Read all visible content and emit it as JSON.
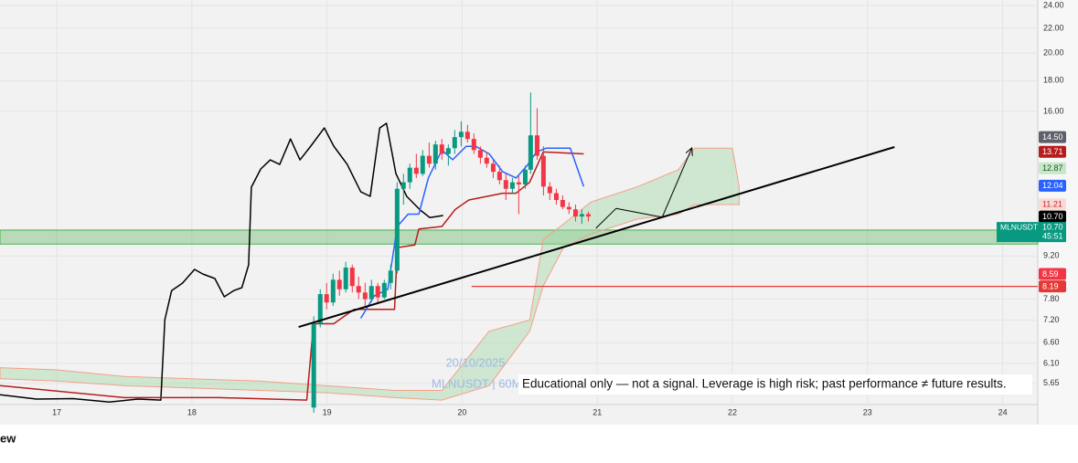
{
  "chart_data": {
    "type": "candlestick",
    "log_scale": true,
    "grid": true,
    "xlim": [
      16.58,
      24.26
    ],
    "ylim": [
      5.21,
      24.51
    ],
    "xticks": [
      17,
      18,
      19,
      20,
      21,
      22,
      23,
      24
    ],
    "yticks": [
      {
        "value": 24,
        "label": "24.00"
      },
      {
        "value": 22,
        "label": "22.00"
      },
      {
        "value": 20,
        "label": "20.00"
      },
      {
        "value": 18,
        "label": "18.00"
      },
      {
        "value": 16,
        "label": "16.00"
      },
      {
        "value": 9.2,
        "label": "9.20"
      },
      {
        "value": 7.8,
        "label": "7.80"
      },
      {
        "value": 7.2,
        "label": "7.20"
      },
      {
        "value": 6.6,
        "label": "6.60"
      },
      {
        "value": 6.1,
        "label": "6.10"
      },
      {
        "value": 5.65,
        "label": "5.65"
      }
    ],
    "up_color": "#089981",
    "down_color": "#f23645",
    "candles": {
      "x": [
        18.902,
        18.95,
        18.997,
        19.045,
        19.092,
        19.139,
        19.187,
        19.234,
        19.282,
        19.329,
        19.376,
        19.424,
        19.471,
        19.519,
        19.566,
        19.613,
        19.661,
        19.708,
        19.756,
        19.803,
        19.85,
        19.898,
        19.945,
        19.993,
        20.04,
        20.087,
        20.135,
        20.182,
        20.23,
        20.277,
        20.324,
        20.372,
        20.419,
        20.467,
        20.507,
        20.555,
        20.602,
        20.649,
        20.697,
        20.744,
        20.791,
        20.839,
        20.886,
        20.934
      ],
      "open": [
        5.15,
        7.1,
        7.95,
        7.7,
        8.4,
        8.1,
        8.8,
        8.2,
        8.0,
        7.8,
        8.2,
        7.85,
        8.3,
        8.7,
        11.9,
        12.2,
        12.9,
        12.6,
        13.5,
        13.1,
        14.1,
        13.6,
        13.9,
        14.5,
        14.8,
        14.4,
        13.8,
        13.4,
        13.1,
        12.7,
        12.3,
        11.9,
        12.2,
        12.1,
        12.8,
        14.6,
        13.5,
        12.0,
        11.7,
        11.4,
        11.1,
        11.0,
        10.7,
        10.8
      ],
      "high": [
        7.3,
        8.1,
        8.3,
        8.6,
        8.7,
        9.0,
        8.9,
        8.5,
        8.3,
        8.4,
        8.3,
        8.4,
        8.9,
        12.2,
        12.6,
        13.1,
        13.6,
        13.8,
        14.2,
        14.3,
        14.4,
        14.1,
        14.9,
        15.4,
        15.2,
        14.7,
        14.0,
        13.7,
        13.3,
        13.0,
        12.6,
        12.4,
        12.5,
        13.0,
        17.2,
        16.2,
        14.0,
        12.2,
        11.9,
        11.6,
        11.3,
        11.2,
        11.0,
        10.9
      ],
      "low": [
        5.05,
        7.0,
        7.5,
        7.6,
        7.9,
        8.0,
        8.0,
        7.8,
        7.6,
        7.7,
        7.7,
        7.8,
        8.1,
        8.6,
        11.2,
        11.9,
        12.4,
        12.5,
        12.9,
        12.8,
        13.3,
        13.0,
        13.6,
        14.0,
        14.2,
        13.6,
        13.1,
        12.9,
        12.4,
        12.1,
        11.4,
        11.7,
        10.8,
        11.9,
        12.6,
        13.3,
        11.6,
        11.4,
        11.2,
        11.0,
        10.8,
        10.5,
        10.4,
        10.5
      ],
      "close": [
        7.1,
        7.95,
        7.7,
        8.4,
        8.1,
        8.8,
        8.2,
        8.0,
        7.8,
        8.2,
        7.85,
        8.3,
        8.7,
        11.9,
        12.2,
        12.9,
        12.6,
        13.5,
        13.1,
        14.1,
        13.6,
        13.9,
        14.5,
        14.8,
        14.4,
        13.8,
        13.4,
        13.1,
        12.7,
        12.3,
        11.9,
        12.2,
        12.1,
        12.8,
        14.6,
        13.5,
        12.0,
        11.7,
        11.4,
        11.1,
        11.0,
        10.7,
        10.8,
        10.7
      ]
    },
    "lines": [
      {
        "color": "#000000",
        "x": [
          16.58,
          16.85,
          17.12,
          17.39,
          17.6,
          17.77,
          17.8,
          17.85,
          17.93,
          18.02,
          18.08,
          18.17,
          18.24,
          18.31,
          18.37,
          18.42,
          18.44,
          18.51,
          18.58,
          18.65,
          18.73,
          18.8,
          18.88,
          18.98,
          19.05,
          19.15,
          19.25,
          19.32,
          19.39,
          19.44,
          19.51,
          19.59,
          19.69,
          19.76,
          19.86
        ],
        "values": [
          5.41,
          5.32,
          5.33,
          5.26,
          5.32,
          5.3,
          7.21,
          8.06,
          8.29,
          8.74,
          8.59,
          8.44,
          7.87,
          8.06,
          8.15,
          8.89,
          11.97,
          12.84,
          13.29,
          13.06,
          14.4,
          13.29,
          14.01,
          15.02,
          14.01,
          13.06,
          11.76,
          11.56,
          15.02,
          15.29,
          12.61,
          11.56,
          10.97,
          10.66,
          10.74
        ]
      },
      {
        "color": "#b71c1c",
        "x": [
          16.58,
          17.5,
          18.2,
          18.85,
          18.9,
          19.05,
          19.2,
          19.5,
          19.52,
          19.65,
          19.68,
          19.85,
          19.95,
          20.05,
          20.3,
          20.4,
          20.5,
          20.6,
          20.9
        ],
        "values": [
          5.6,
          5.35,
          5.35,
          5.3,
          7.1,
          7.1,
          7.5,
          7.5,
          9.5,
          9.6,
          10.2,
          10.3,
          11.0,
          11.4,
          11.7,
          11.7,
          12.2,
          13.7,
          13.6
        ]
      },
      {
        "color": "#2962ff",
        "x": [
          19.25,
          19.35,
          19.45,
          19.52,
          19.6,
          19.68,
          19.75,
          19.85,
          19.93,
          20.03,
          20.1,
          20.2,
          20.3,
          20.4,
          20.48,
          20.55,
          20.62,
          20.8,
          20.9
        ],
        "values": [
          7.25,
          7.9,
          8.1,
          10.3,
          10.8,
          10.8,
          12.4,
          13.8,
          13.3,
          14.0,
          14.0,
          13.6,
          12.7,
          12.4,
          13.0,
          13.7,
          13.9,
          13.9,
          12.0
        ]
      }
    ],
    "cloud": {
      "color": "#a5d6a7",
      "edge_color": "#f4a08a",
      "x": [
        16.58,
        17.0,
        17.5,
        18.0,
        18.5,
        19.0,
        19.5,
        19.85,
        20.2,
        20.5,
        20.6,
        20.75,
        20.95,
        21.3,
        21.6,
        21.72,
        22.0,
        22.05
      ],
      "upper": [
        6.0,
        5.95,
        5.8,
        5.75,
        5.7,
        5.6,
        5.5,
        5.5,
        6.9,
        7.2,
        9.8,
        10.4,
        11.3,
        12.0,
        12.8,
        13.9,
        13.9,
        12.0
      ],
      "lower": [
        5.75,
        5.7,
        5.6,
        5.55,
        5.5,
        5.45,
        5.35,
        5.3,
        5.6,
        6.9,
        8.2,
        9.5,
        10.0,
        10.6,
        10.8,
        11.2,
        11.2,
        11.2
      ]
    },
    "zone": {
      "low": 9.63,
      "high": 10.16,
      "color": "#4caf50"
    },
    "level": {
      "value": 8.19,
      "x_start": 20.07,
      "color": "#e53935"
    },
    "trendline": {
      "color": "#000000",
      "x": [
        18.79,
        23.2
      ],
      "values": [
        7.01,
        13.96
      ]
    },
    "arrow": {
      "color": "#000000",
      "x": [
        20.99,
        21.14,
        21.48,
        21.7
      ],
      "values": [
        10.23,
        11.04,
        10.67,
        13.92
      ]
    },
    "price_labels": [
      {
        "value": 14.5,
        "label": "14.50",
        "color": "#5d606b",
        "text_color": "#ffffff"
      },
      {
        "value": 13.71,
        "label": "13.71",
        "color": "#b71c1c",
        "text_color": "#ffffff"
      },
      {
        "value": 12.87,
        "label": "12.87",
        "color": "#c8e6c9",
        "text_color": "#1b5e20"
      },
      {
        "value": 12.04,
        "label": "12.04",
        "color": "#2962ff",
        "text_color": "#ffffff"
      },
      {
        "value": 11.21,
        "label": "11.21",
        "color": "#fcd9d9",
        "text_color": "#c62828"
      },
      {
        "value": 10.7,
        "label": "10.70",
        "color": "#000000",
        "text_color": "#ffffff"
      },
      {
        "value": 8.59,
        "label": "8.59",
        "color": "#f23645",
        "text_color": "#ffffff"
      },
      {
        "value": 8.19,
        "label": "8.19",
        "color": "#e53935",
        "text_color": "#ffffff"
      }
    ],
    "symbol_badge": {
      "symbol": "MLNUSDT",
      "price": {
        "value": 10.7,
        "label": "10.70"
      },
      "countdown": "45:51",
      "color": "#089981"
    },
    "watermark_date": "20/10/2025",
    "watermark_symbol": "MLNUSDT | 60M",
    "disclaimer": "Educational only — not a signal. Leverage is high risk; past performance ≠ future results.",
    "branding": "ew"
  }
}
